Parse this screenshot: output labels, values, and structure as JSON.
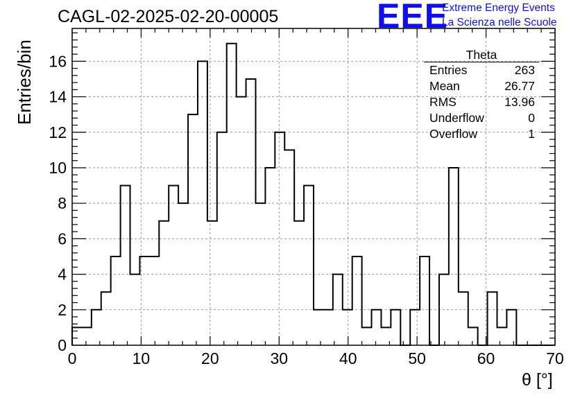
{
  "header": {
    "run_title": "CAGL-02-2025-02-20-00005",
    "logo_text": "EEE",
    "logo_line1": "Extreme Energy Events",
    "logo_line2": "La Scienza nelle Scuole"
  },
  "colors": {
    "logo": "#1010e6",
    "line": "#000000",
    "grid": "#999999"
  },
  "stats_box": {
    "title": "Theta",
    "rows": [
      {
        "label": "Entries",
        "value": "263"
      },
      {
        "label": "Mean",
        "value": "26.77"
      },
      {
        "label": "RMS",
        "value": "13.96"
      },
      {
        "label": "Underflow",
        "value": "0"
      },
      {
        "label": "Overflow",
        "value": "1"
      }
    ]
  },
  "chart_data": {
    "type": "histogram",
    "title": "CAGL-02-2025-02-20-00005",
    "xlabel": "θ [°]",
    "ylabel": "Entries/bin",
    "xlim": [
      0,
      70
    ],
    "ylim": [
      0,
      17.85
    ],
    "grid": true,
    "bin_width": 1.4,
    "values": [
      1,
      1,
      2,
      3,
      5,
      9,
      4,
      5,
      5,
      7,
      9,
      8,
      13,
      16,
      7,
      12,
      17,
      14,
      15,
      8,
      10,
      12,
      11,
      7,
      9,
      2,
      2,
      4,
      2,
      5,
      1,
      2,
      1,
      2,
      0,
      2,
      5,
      0,
      4,
      10,
      3,
      1,
      0,
      3,
      1,
      2,
      0,
      0,
      0,
      0
    ],
    "x_ticks": [
      0,
      10,
      20,
      30,
      40,
      50,
      60,
      70
    ],
    "y_ticks": [
      0,
      2,
      4,
      6,
      8,
      10,
      12,
      14,
      16
    ]
  }
}
